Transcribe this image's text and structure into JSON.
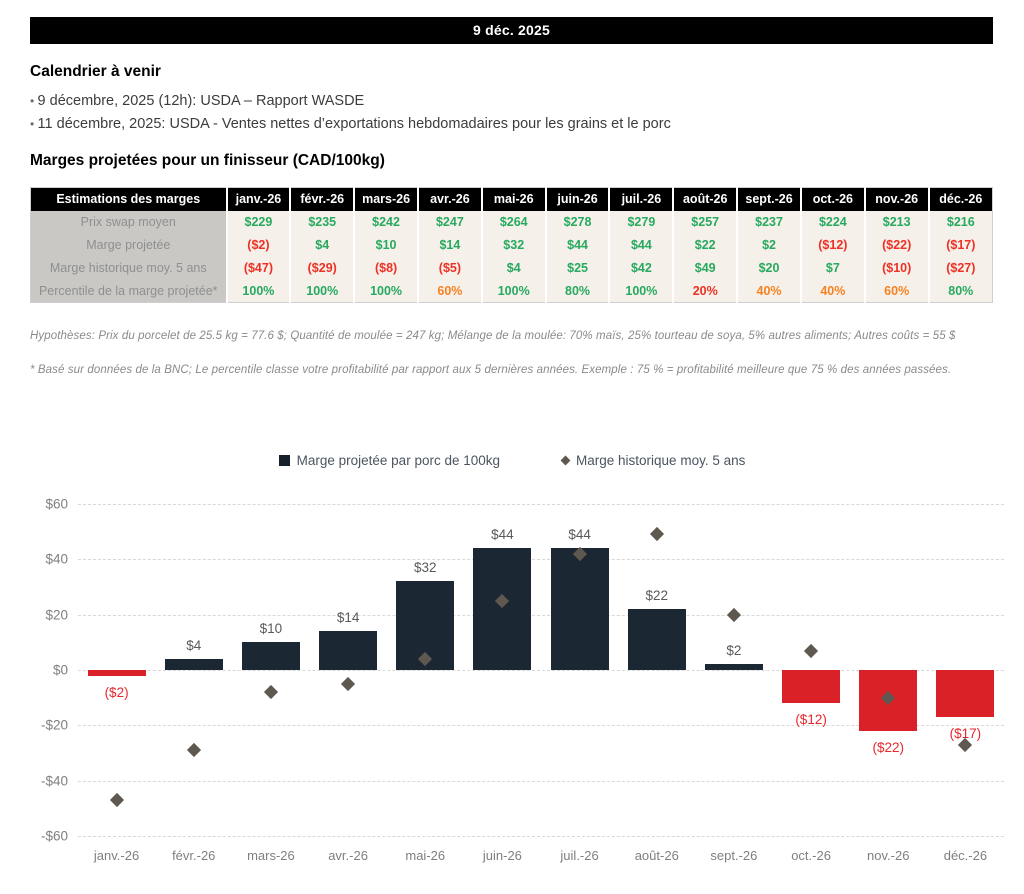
{
  "header": {
    "date": "9 déc. 2025"
  },
  "calendar": {
    "title": "Calendrier à venir",
    "items": [
      "9 décembre, 2025 (12h): USDA – Rapport WASDE",
      "11 décembre, 2025: USDA - Ventes nettes d’exportations hebdomadaires pour les grains et le porc"
    ]
  },
  "margins_section": {
    "title": "Marges projetées pour un finisseur (CAD/100kg)",
    "table": {
      "corner_header": "Estimations des marges",
      "columns": [
        "janv.-26",
        "févr.-26",
        "mars-26",
        "avr.-26",
        "mai-26",
        "juin-26",
        "juil.-26",
        "août-26",
        "sept.-26",
        "oct.-26",
        "nov.-26",
        "déc.-26"
      ],
      "rows": [
        {
          "label": "Prix swap moyen",
          "values": [
            "$229",
            "$235",
            "$242",
            "$247",
            "$264",
            "$278",
            "$279",
            "$257",
            "$237",
            "$224",
            "$213",
            "$216"
          ],
          "colors": [
            "green",
            "green",
            "green",
            "green",
            "green",
            "green",
            "green",
            "green",
            "green",
            "green",
            "green",
            "green"
          ]
        },
        {
          "label": "Marge projetée",
          "values": [
            "($2)",
            "$4",
            "$10",
            "$14",
            "$32",
            "$44",
            "$44",
            "$22",
            "$2",
            "($12)",
            "($22)",
            "($17)"
          ],
          "colors": [
            "red",
            "green",
            "green",
            "green",
            "green",
            "green",
            "green",
            "green",
            "green",
            "red",
            "red",
            "red"
          ]
        },
        {
          "label": "Marge historique moy. 5 ans",
          "values": [
            "($47)",
            "($29)",
            "($8)",
            "($5)",
            "$4",
            "$25",
            "$42",
            "$49",
            "$20",
            "$7",
            "($10)",
            "($27)"
          ],
          "colors": [
            "red",
            "red",
            "red",
            "red",
            "green",
            "green",
            "green",
            "green",
            "green",
            "green",
            "red",
            "red"
          ]
        },
        {
          "label": "Percentile de la marge projetée*",
          "values": [
            "100%",
            "100%",
            "100%",
            "60%",
            "100%",
            "80%",
            "100%",
            "20%",
            "40%",
            "40%",
            "60%",
            "80%"
          ],
          "colors": [
            "green",
            "green",
            "green",
            "orange",
            "green",
            "green",
            "green",
            "red",
            "orange",
            "orange",
            "orange",
            "green"
          ],
          "bold": true
        }
      ]
    },
    "footnotes": [
      "Hypothèses: Prix du porcelet de 25.5 kg = 77.6 $; Quantité de moulée = 247 kg; Mélange de la moulée: 70% maïs, 25% tourteau de soya, 5% autres aliments; Autres coûts = 55 $",
      "* Basé sur données de la BNC; Le percentile classe votre profitabilité par rapport aux 5 dernières années. Exemple : 75 % = profitabilité meilleure que 75 % des années passées."
    ]
  },
  "chart_data": {
    "type": "bar",
    "title": "",
    "categories": [
      "janv.-26",
      "févr.-26",
      "mars-26",
      "avr.-26",
      "mai-26",
      "juin-26",
      "juil.-26",
      "août-26",
      "sept.-26",
      "oct.-26",
      "nov.-26",
      "déc.-26"
    ],
    "series": [
      {
        "name": "Marge projetée par porc de 100kg",
        "type": "bar",
        "values": [
          -2,
          4,
          10,
          14,
          32,
          44,
          44,
          22,
          2,
          -12,
          -22,
          -17
        ],
        "labels": [
          "($2)",
          "$4",
          "$10",
          "$14",
          "$32",
          "$44",
          "$44",
          "$22",
          "$2",
          "($12)",
          "($22)",
          "($17)"
        ]
      },
      {
        "name": "Marge historique moy. 5 ans",
        "type": "scatter",
        "values": [
          -47,
          -29,
          -8,
          -5,
          4,
          25,
          42,
          49,
          20,
          7,
          -10,
          -27
        ]
      }
    ],
    "xlabel": "",
    "ylabel": "",
    "ylim": [
      -60,
      60
    ],
    "ytick_step": 20,
    "ytick_labels": [
      "$60",
      "$40",
      "$20",
      "$0",
      "-$20",
      "-$40",
      "-$60"
    ],
    "grid": "horizontal-dashed",
    "legend_position": "top-center",
    "colors": {
      "bar_positive": "#1b2733",
      "bar_negative": "#da2128",
      "marker": "#5f5850"
    }
  }
}
